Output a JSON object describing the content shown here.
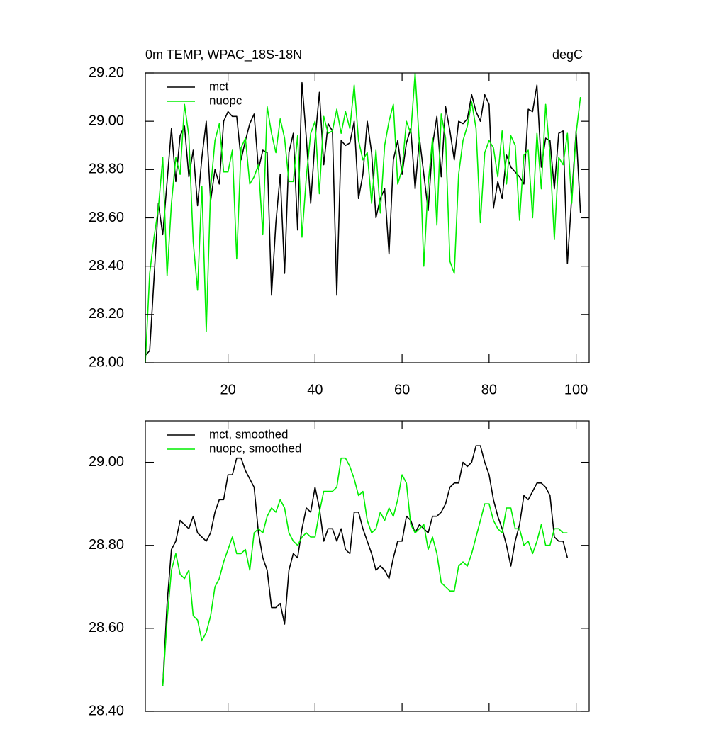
{
  "chart_data": [
    {
      "type": "line",
      "title": "0m TEMP, WPAC_18S-18N",
      "units": "degC",
      "x": [
        1,
        2,
        3,
        4,
        5,
        6,
        7,
        8,
        9,
        10,
        11,
        12,
        13,
        14,
        15,
        16,
        17,
        18,
        19,
        20,
        21,
        22,
        23,
        24,
        25,
        26,
        27,
        28,
        29,
        30,
        31,
        32,
        33,
        34,
        35,
        36,
        37,
        38,
        39,
        40,
        41,
        42,
        43,
        44,
        45,
        46,
        47,
        48,
        49,
        50,
        51,
        52,
        53,
        54,
        55,
        56,
        57,
        58,
        59,
        60,
        61,
        62,
        63,
        64,
        65,
        66,
        67,
        68,
        69,
        70,
        71,
        72,
        73,
        74,
        75,
        76,
        77,
        78,
        79,
        80,
        81,
        82,
        83,
        84,
        85,
        86,
        87,
        88,
        89,
        90,
        91,
        92,
        93,
        94,
        95,
        96,
        97,
        98,
        99,
        100,
        101
      ],
      "series": [
        {
          "name": "mct",
          "color": "#000000",
          "values": [
            28.03,
            28.05,
            28.35,
            28.66,
            28.53,
            28.75,
            28.97,
            28.75,
            28.94,
            28.98,
            28.77,
            28.88,
            28.65,
            28.85,
            29.0,
            28.67,
            28.8,
            28.74,
            29.0,
            29.04,
            29.02,
            29.02,
            28.84,
            28.92,
            28.99,
            29.03,
            28.8,
            28.88,
            28.87,
            28.28,
            28.58,
            28.78,
            28.37,
            28.87,
            28.95,
            28.55,
            29.16,
            28.93,
            28.66,
            28.92,
            29.12,
            28.82,
            28.99,
            28.96,
            28.28,
            28.92,
            28.9,
            28.91,
            29.0,
            28.68,
            28.78,
            29.0,
            28.87,
            28.6,
            28.68,
            28.72,
            28.45,
            28.84,
            28.92,
            28.78,
            28.91,
            28.97,
            28.72,
            28.93,
            28.78,
            28.63,
            28.9,
            29.02,
            28.77,
            29.06,
            28.96,
            28.84,
            29.0,
            28.99,
            29.01,
            29.11,
            29.04,
            29.0,
            29.11,
            29.07,
            28.64,
            28.75,
            28.68,
            28.86,
            28.81,
            28.79,
            28.77,
            28.74,
            29.05,
            29.04,
            29.15,
            28.81,
            28.93,
            28.92,
            28.72,
            28.95,
            28.96,
            28.41,
            28.69,
            28.96,
            28.62
          ]
        },
        {
          "name": "nuopc",
          "color": "#00ee00",
          "values": [
            28.0,
            28.37,
            28.52,
            28.64,
            28.85,
            28.36,
            28.66,
            28.85,
            28.78,
            29.07,
            28.94,
            28.5,
            28.3,
            28.73,
            28.13,
            28.72,
            28.92,
            28.99,
            28.79,
            28.79,
            28.88,
            28.43,
            28.89,
            28.93,
            28.74,
            28.77,
            28.82,
            28.53,
            29.06,
            28.95,
            28.87,
            29.01,
            28.93,
            28.75,
            28.75,
            28.94,
            28.52,
            28.77,
            28.95,
            29.0,
            28.7,
            29.02,
            28.95,
            28.96,
            29.05,
            28.95,
            29.04,
            28.97,
            29.15,
            28.92,
            28.84,
            28.87,
            28.66,
            28.88,
            28.62,
            28.9,
            29.0,
            29.07,
            28.74,
            28.8,
            29.0,
            28.95,
            29.2,
            28.9,
            28.4,
            28.74,
            28.93,
            28.57,
            29.03,
            28.93,
            28.42,
            28.37,
            28.78,
            28.92,
            28.98,
            29.08,
            28.97,
            28.58,
            28.87,
            28.92,
            28.89,
            28.77,
            28.96,
            28.74,
            28.94,
            28.9,
            28.59,
            28.86,
            28.88,
            28.6,
            28.95,
            28.72,
            29.07,
            28.86,
            28.51,
            28.85,
            28.82,
            28.95,
            28.66,
            28.95,
            29.1
          ]
        }
      ],
      "xlim": [
        1,
        103
      ],
      "xticks": [
        20,
        40,
        60,
        80,
        100
      ],
      "ylim": [
        28.0,
        29.2
      ],
      "yticks": [
        {
          "value": 28.0,
          "label": "28.00"
        },
        {
          "value": 28.2,
          "label": "28.20"
        },
        {
          "value": 28.4,
          "label": "28.40"
        },
        {
          "value": 28.6,
          "label": "28.60"
        },
        {
          "value": 28.8,
          "label": "28.80"
        },
        {
          "value": 29.0,
          "label": "29.00"
        },
        {
          "value": 29.2,
          "label": "29.20"
        }
      ],
      "legend": "upper left"
    },
    {
      "type": "line",
      "x": [
        5,
        6,
        7,
        8,
        9,
        10,
        11,
        12,
        13,
        14,
        15,
        16,
        17,
        18,
        19,
        20,
        21,
        22,
        23,
        24,
        25,
        26,
        27,
        28,
        29,
        30,
        31,
        32,
        33,
        34,
        35,
        36,
        37,
        38,
        39,
        40,
        41,
        42,
        43,
        44,
        45,
        46,
        47,
        48,
        49,
        50,
        51,
        52,
        53,
        54,
        55,
        56,
        57,
        58,
        59,
        60,
        61,
        62,
        63,
        64,
        65,
        66,
        67,
        68,
        69,
        70,
        71,
        72,
        73,
        74,
        75,
        76,
        77,
        78,
        79,
        80,
        81,
        82,
        83,
        84,
        85,
        86,
        87,
        88,
        89,
        90,
        91,
        92,
        93,
        94,
        95,
        96,
        97,
        98
      ],
      "series": [
        {
          "name": "mct, smoothed",
          "color": "#000000",
          "values": [
            28.46,
            28.66,
            28.79,
            28.81,
            28.86,
            28.85,
            28.84,
            28.87,
            28.83,
            28.82,
            28.81,
            28.83,
            28.88,
            28.91,
            28.91,
            28.97,
            28.97,
            29.01,
            29.01,
            28.98,
            28.96,
            28.94,
            28.83,
            28.77,
            28.74,
            28.65,
            28.65,
            28.66,
            28.61,
            28.74,
            28.78,
            28.77,
            28.84,
            28.89,
            28.88,
            28.94,
            28.89,
            28.81,
            28.84,
            28.84,
            28.81,
            28.84,
            28.79,
            28.78,
            28.88,
            28.88,
            28.84,
            28.81,
            28.78,
            28.74,
            28.75,
            28.74,
            28.72,
            28.77,
            28.81,
            28.81,
            28.87,
            28.86,
            28.83,
            28.85,
            28.84,
            28.83,
            28.87,
            28.87,
            28.88,
            28.9,
            28.94,
            28.95,
            28.95,
            29.0,
            28.99,
            29.0,
            29.04,
            29.04,
            29.0,
            28.97,
            28.91,
            28.87,
            28.84,
            28.8,
            28.75,
            28.81,
            28.85,
            28.92,
            28.91,
            28.93,
            28.95,
            28.95,
            28.94,
            28.92,
            28.82,
            28.81,
            28.81,
            28.77
          ]
        },
        {
          "name": "nuopc, smoothed",
          "color": "#00ee00",
          "values": [
            28.46,
            28.62,
            28.74,
            28.78,
            28.73,
            28.72,
            28.74,
            28.63,
            28.62,
            28.57,
            28.59,
            28.63,
            28.7,
            28.72,
            28.76,
            28.79,
            28.82,
            28.78,
            28.78,
            28.79,
            28.74,
            28.83,
            28.84,
            28.83,
            28.87,
            28.89,
            28.88,
            28.91,
            28.89,
            28.83,
            28.81,
            28.8,
            28.82,
            28.83,
            28.82,
            28.82,
            28.88,
            28.93,
            28.93,
            28.93,
            28.94,
            29.01,
            29.01,
            28.99,
            28.96,
            28.92,
            28.93,
            28.86,
            28.83,
            28.84,
            28.88,
            28.86,
            28.89,
            28.87,
            28.91,
            28.97,
            28.95,
            28.85,
            28.83,
            28.84,
            28.85,
            28.79,
            28.82,
            28.78,
            28.71,
            28.7,
            28.69,
            28.69,
            28.75,
            28.76,
            28.75,
            28.78,
            28.82,
            28.86,
            28.9,
            28.9,
            28.86,
            28.84,
            28.83,
            28.89,
            28.89,
            28.84,
            28.84,
            28.8,
            28.81,
            28.78,
            28.81,
            28.85,
            28.8,
            28.8,
            28.84,
            28.84,
            28.83,
            28.83
          ]
        }
      ],
      "xlim": [
        1,
        103
      ],
      "xticks": [
        20,
        40,
        60,
        80,
        100
      ],
      "ylim": [
        28.4,
        29.1
      ],
      "yticks": [
        {
          "value": 28.4,
          "label": "28.40"
        },
        {
          "value": 28.6,
          "label": "28.60"
        },
        {
          "value": 28.8,
          "label": "28.80"
        },
        {
          "value": 29.0,
          "label": "29.00"
        }
      ],
      "legend": "upper left"
    }
  ]
}
